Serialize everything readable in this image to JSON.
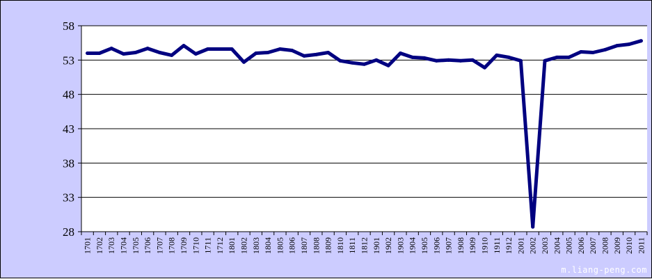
{
  "chart_data": {
    "type": "line",
    "title": "",
    "xlabel": "",
    "ylabel": "",
    "ylim": [
      28,
      58
    ],
    "yticks": [
      28,
      33,
      38,
      43,
      48,
      53,
      58
    ],
    "grid": "horizontal",
    "legend": "none",
    "categories": [
      "1701",
      "1702",
      "1703",
      "1704",
      "1705",
      "1706",
      "1707",
      "1708",
      "1709",
      "1710",
      "1711",
      "1712",
      "1801",
      "1802",
      "1803",
      "1804",
      "1805",
      "1806",
      "1807",
      "1808",
      "1809",
      "1810",
      "1811",
      "1812",
      "1901",
      "1902",
      "1903",
      "1904",
      "1905",
      "1906",
      "1907",
      "1908",
      "1909",
      "1910",
      "1911",
      "1912",
      "2001",
      "2002",
      "2003",
      "2004",
      "2005",
      "2006",
      "2007",
      "2008",
      "2009",
      "2010",
      "2011"
    ],
    "series": [
      {
        "values": [
          54.0,
          54.0,
          54.7,
          53.9,
          54.1,
          54.7,
          54.1,
          53.7,
          55.1,
          53.9,
          54.6,
          54.6,
          54.6,
          52.7,
          54.0,
          54.1,
          54.6,
          54.4,
          53.6,
          53.8,
          54.1,
          52.9,
          52.6,
          52.4,
          53.0,
          52.2,
          54.0,
          53.4,
          53.3,
          52.9,
          53.0,
          52.9,
          53.0,
          51.9,
          53.7,
          53.4,
          52.9,
          28.7,
          52.9,
          53.4,
          53.4,
          54.2,
          54.1,
          54.5,
          55.1,
          55.3,
          55.8
        ],
        "color": "#000080"
      }
    ],
    "colors": {
      "background": "#ccccff",
      "plot_area": "#ffffff",
      "line": "#000080",
      "grid": "#000000"
    }
  },
  "watermark": "m.liang-peng.com"
}
